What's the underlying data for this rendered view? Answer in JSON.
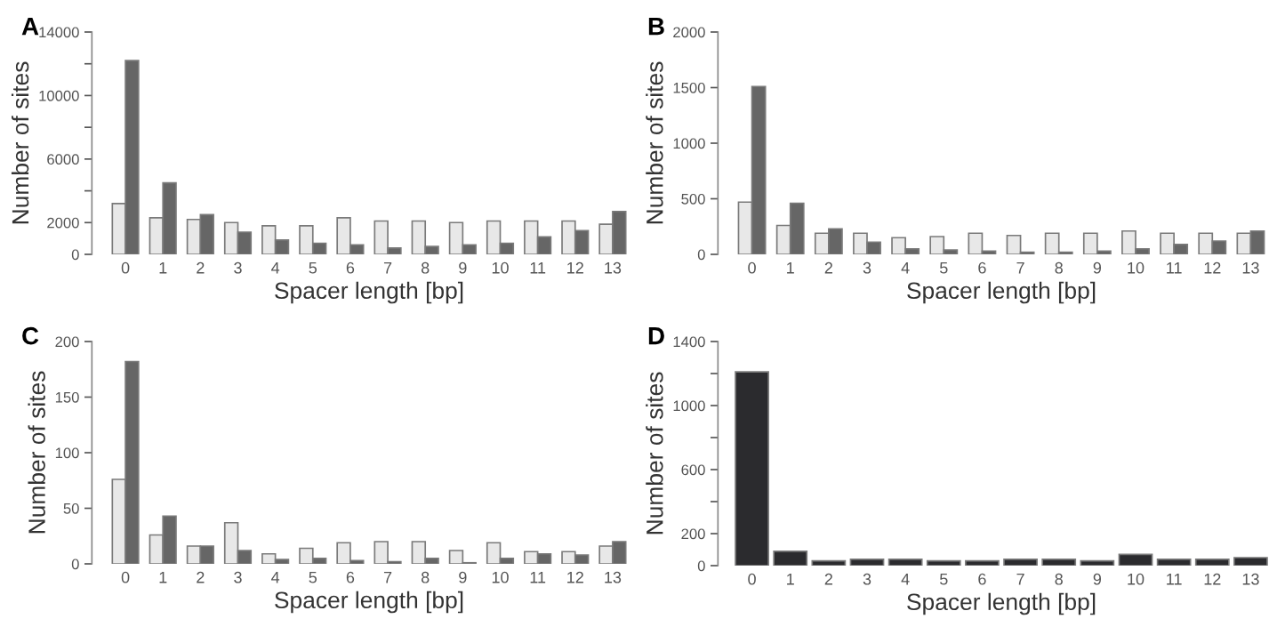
{
  "chart_data": [
    {
      "type": "bar",
      "title": "A",
      "xlabel": "Spacer length [bp]",
      "ylabel": "Number of sites",
      "categories": [
        "0",
        "1",
        "2",
        "3",
        "4",
        "5",
        "6",
        "7",
        "8",
        "9",
        "10",
        "11",
        "12",
        "13"
      ],
      "ylim": [
        0,
        14000
      ],
      "yticks": [
        0,
        2000,
        {
          "value": 4000,
          "label": null
        },
        6000,
        {
          "value": 8000,
          "label": null
        },
        10000,
        {
          "value": 12000,
          "label": null
        },
        14000
      ],
      "grid": false,
      "legend": false,
      "series": [
        {
          "color": "#e8e8e8",
          "values": [
            3200,
            2300,
            2200,
            2000,
            1800,
            1800,
            2300,
            2100,
            2100,
            2000,
            2100,
            2100,
            2100,
            1900
          ]
        },
        {
          "color": "#666666",
          "values": [
            12200,
            4500,
            2500,
            1400,
            900,
            700,
            600,
            400,
            500,
            600,
            700,
            1100,
            1500,
            2700
          ]
        }
      ]
    },
    {
      "type": "bar",
      "title": "B",
      "xlabel": "Spacer length [bp]",
      "ylabel": "Number of sites",
      "categories": [
        "0",
        "1",
        "2",
        "3",
        "4",
        "5",
        "6",
        "7",
        "8",
        "9",
        "10",
        "11",
        "12",
        "13"
      ],
      "ylim": [
        0,
        2000
      ],
      "yticks": [
        0,
        500,
        1000,
        1500,
        2000
      ],
      "grid": false,
      "legend": false,
      "series": [
        {
          "color": "#e8e8e8",
          "values": [
            470,
            260,
            190,
            190,
            150,
            160,
            190,
            170,
            190,
            190,
            210,
            190,
            190,
            190
          ]
        },
        {
          "color": "#666666",
          "values": [
            1510,
            460,
            230,
            110,
            50,
            40,
            30,
            20,
            20,
            30,
            50,
            90,
            120,
            210
          ]
        }
      ]
    },
    {
      "type": "bar",
      "title": "C",
      "xlabel": "Spacer length [bp]",
      "ylabel": "Number of sites",
      "categories": [
        "0",
        "1",
        "2",
        "3",
        "4",
        "5",
        "6",
        "7",
        "8",
        "9",
        "10",
        "11",
        "12",
        "13"
      ],
      "ylim": [
        0,
        200
      ],
      "yticks": [
        0,
        50,
        100,
        150,
        200
      ],
      "grid": false,
      "legend": false,
      "series": [
        {
          "color": "#e8e8e8",
          "values": [
            76,
            26,
            16,
            37,
            9,
            14,
            19,
            20,
            20,
            12,
            19,
            11,
            11,
            16
          ]
        },
        {
          "color": "#666666",
          "values": [
            182,
            43,
            16,
            12,
            4,
            5,
            3,
            2,
            5,
            1,
            5,
            9,
            8,
            20
          ]
        }
      ]
    },
    {
      "type": "bar",
      "title": "D",
      "xlabel": "Spacer length [bp]",
      "ylabel": "Number of sites",
      "categories": [
        "0",
        "1",
        "2",
        "3",
        "4",
        "5",
        "6",
        "7",
        "8",
        "9",
        "10",
        "11",
        "12",
        "13"
      ],
      "ylim": [
        0,
        1400
      ],
      "yticks": [
        0,
        200,
        {
          "value": 400,
          "label": null
        },
        600,
        {
          "value": 800,
          "label": null
        },
        1000,
        {
          "value": 1200,
          "label": null
        },
        1400
      ],
      "grid": false,
      "legend": false,
      "series": [
        {
          "color": "#2b2b2e",
          "values": [
            1210,
            90,
            30,
            40,
            40,
            30,
            30,
            40,
            40,
            30,
            70,
            40,
            40,
            50
          ]
        }
      ]
    }
  ]
}
